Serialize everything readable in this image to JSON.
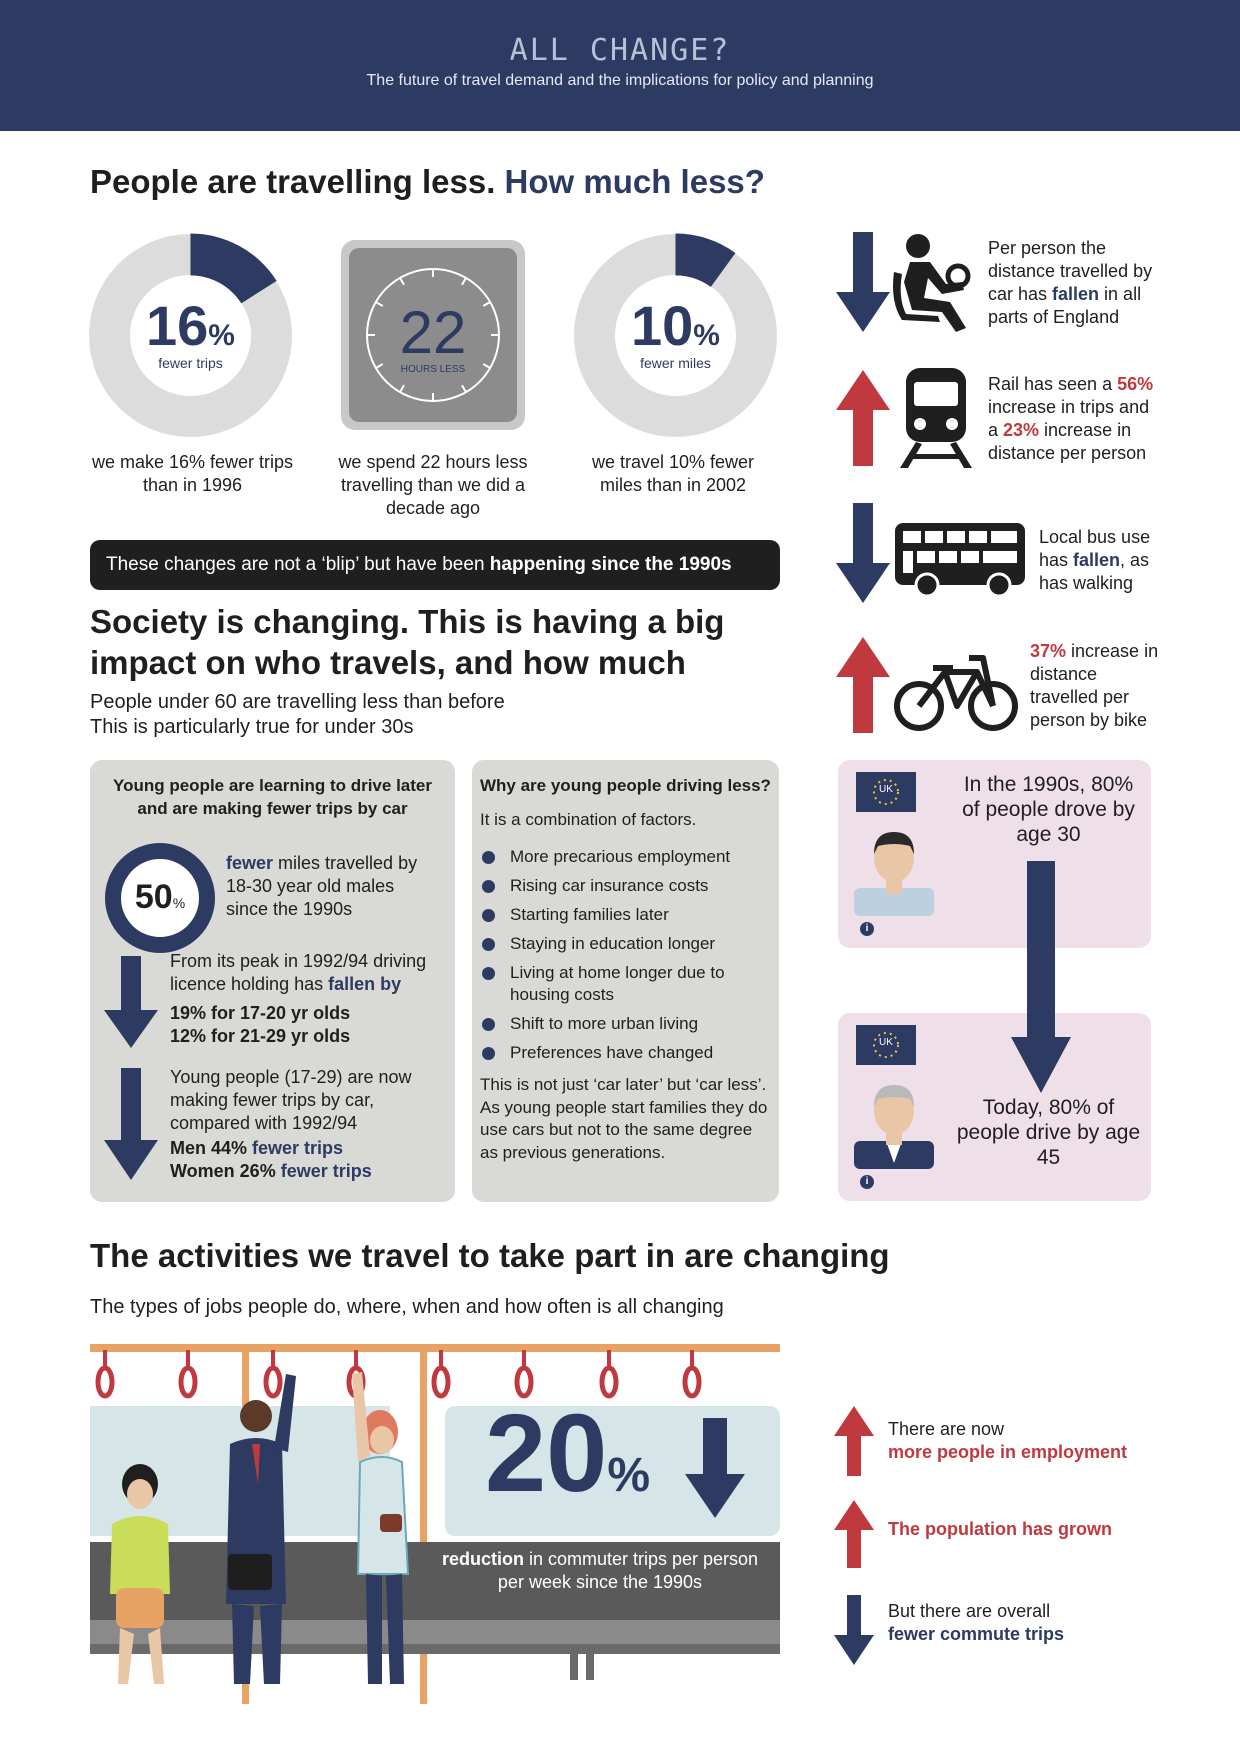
{
  "header": {
    "title": "ALL CHANGE?",
    "subtitle": "The future of travel demand and the implications for policy and planning"
  },
  "section1": {
    "heading_a": "People are travelling less.",
    "heading_b": "How much less?",
    "stats": [
      {
        "value": "16",
        "unit": "%",
        "label": "fewer trips",
        "fraction": 0.16,
        "caption": "we make 16% fewer trips than in 1996"
      },
      {
        "value": "22",
        "label": "HOURS LESS",
        "caption": "we spend 22 hours less travelling than we did a decade ago"
      },
      {
        "value": "10",
        "unit": "%",
        "label": "fewer miles",
        "fraction": 0.1,
        "caption": "we travel 10% fewer miles than in 2002"
      }
    ],
    "banner_plain": "These changes are not a ‘blip’ but have been ",
    "banner_bold": "happening since the 1990s"
  },
  "side": {
    "car": {
      "t1": "Per person the distance travelled by car has ",
      "hl": "fallen",
      "t2": " in all parts of England"
    },
    "rail": {
      "t1": "Rail has seen a ",
      "v1": "56%",
      "t2": " increase in trips and a ",
      "v2": "23%",
      "t3": " increase in distance per person"
    },
    "bus": {
      "t1": "Local bus use has ",
      "hl": "fallen",
      "t2": ", as has walking"
    },
    "bike": {
      "v": "37%",
      "t": " increase in distance travelled per person by bike"
    }
  },
  "section2": {
    "heading": "Society is changing. This is having a big impact on who travels, and how much",
    "sub1": "People under 60 are travelling less than before",
    "sub2": "This is particularly true for under 30s"
  },
  "young": {
    "title": "Young people are learning to drive later and are making fewer trips by car",
    "ring_value": "50",
    "ring_unit": "%",
    "ring_hl": "fewer",
    "ring_text": " miles travelled by 18-30 year old males since the 1990s",
    "lic_t1": "From its peak in 1992/94 driving licence holding has ",
    "lic_hl": "fallen by",
    "lic_l1": "19% for 17-20 yr olds",
    "lic_l2": "12% for 21-29 yr olds",
    "trips_text": "Young people (17-29) are now making fewer trips by car, compared with 1992/94",
    "men_a": "Men  44% ",
    "men_b": "fewer trips",
    "women_a": "Women 26% ",
    "women_b": "fewer trips"
  },
  "why": {
    "title": "Why are young people driving less?",
    "intro": "It is a combination of factors.",
    "factors": [
      "More precarious employment",
      "Rising car insurance costs",
      "Starting families later",
      "Staying in education longer",
      "Living at home longer due to housing costs",
      "Shift to more urban living",
      "Preferences have changed"
    ],
    "outro": "This is not just ‘car later’ but ‘car less’. As young people start families they do use cars but not to the same degree as previous generations."
  },
  "age": {
    "flag": "UK",
    "then": "In the 1990s, 80% of people drove by age 30",
    "now": "Today, 80% of people drive by age 45",
    "info": "i"
  },
  "section3": {
    "heading": "The activities we travel to take part in are changing",
    "sub": "The types of jobs people do, where, when and how often is all changing",
    "big_value": "20",
    "big_unit": "%",
    "reduction_b": "reduction",
    "reduction_t": " in commuter trips per person per week since the 1990s",
    "emp_t": "There are now",
    "emp_hl": "more people in employment",
    "pop": "The population has grown",
    "commute_t": "But there are overall",
    "commute_hl": "fewer commute trips"
  },
  "colors": {
    "navy": "#2d3b63",
    "red": "#c0393e",
    "grey": "#d9d9d6",
    "pink": "#efdfe8",
    "orange": "#e8a364"
  }
}
